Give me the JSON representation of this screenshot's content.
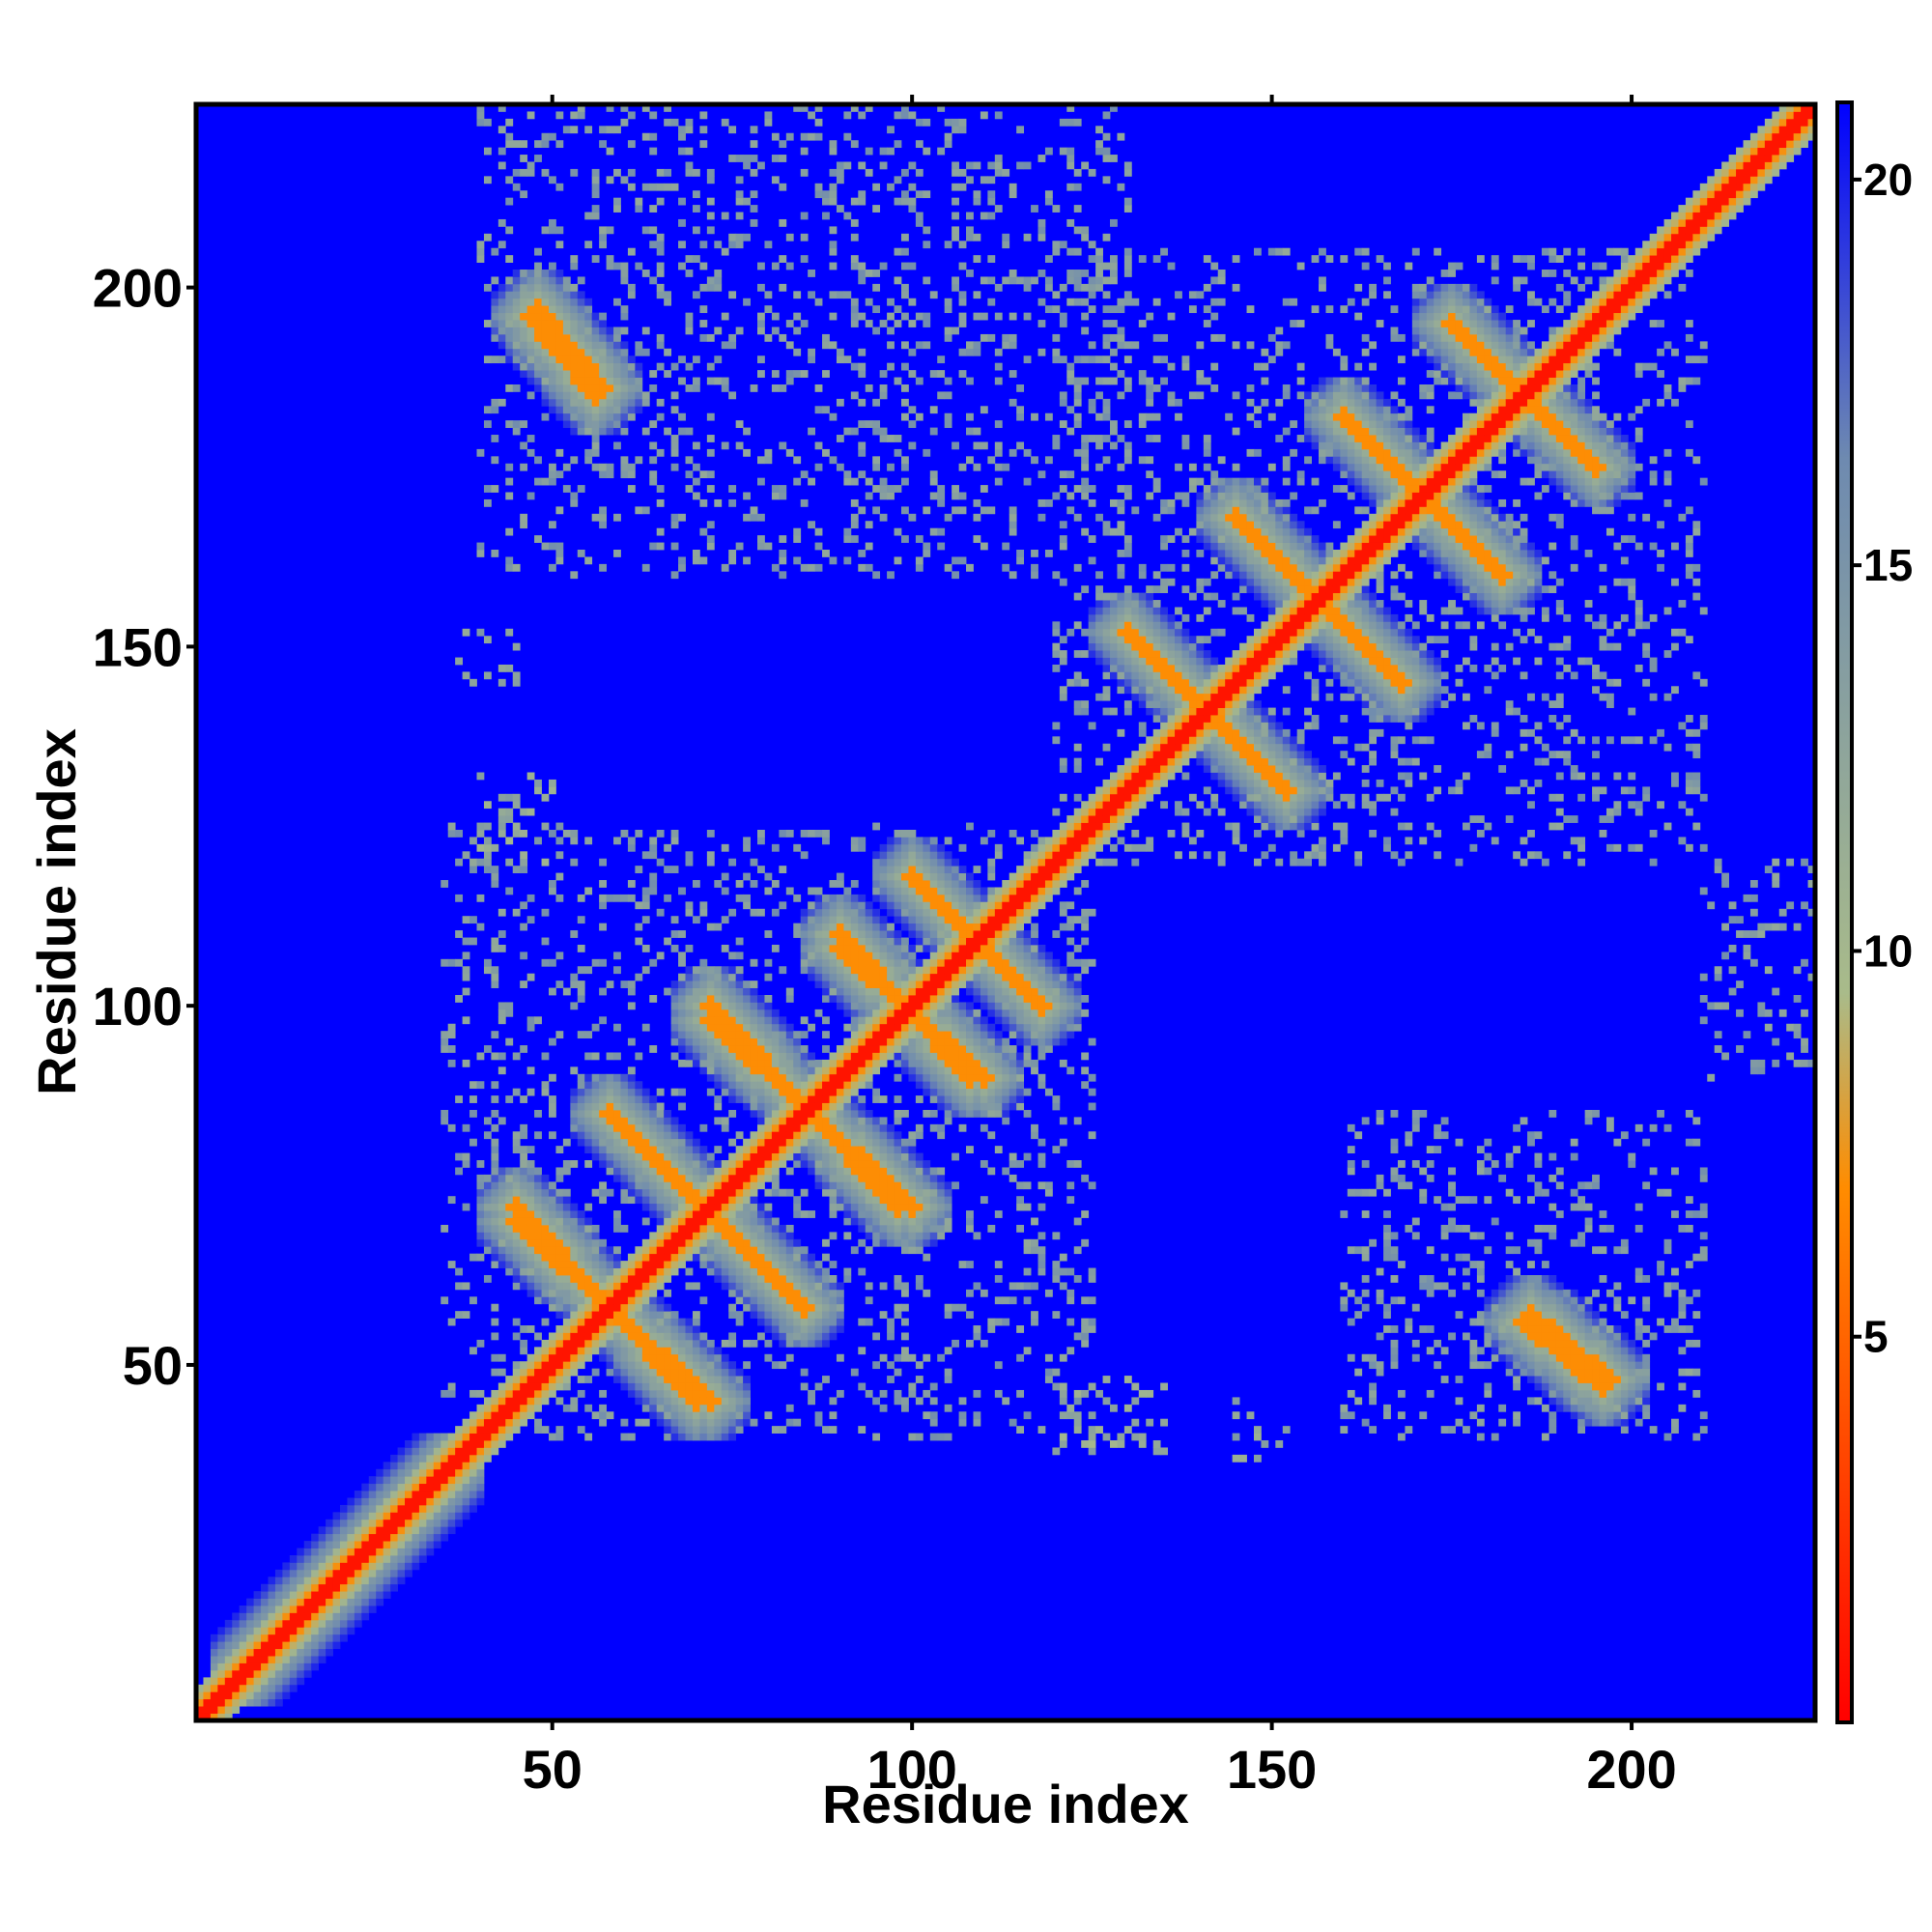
{
  "chart_data": {
    "type": "heatmap",
    "title": "",
    "xlabel": "Residue index",
    "ylabel": "Residue index",
    "xlim": [
      1,
      225
    ],
    "ylim": [
      1,
      225
    ],
    "x_ticks": [
      50,
      100,
      150,
      200
    ],
    "y_ticks": [
      50,
      100,
      150,
      200
    ],
    "colorbar": {
      "ticks": [
        5,
        10,
        15,
        20
      ],
      "range": [
        0,
        21
      ],
      "colors": [
        "#ff0000",
        "#ff8c00",
        "#a9bb8a",
        "#6e8ab0",
        "#0000ff"
      ]
    },
    "background_color": "#0000ff",
    "diagonal_color": "#ff0000",
    "bands": [
      {
        "kind": "parallel",
        "from": [
          8,
          8
        ],
        "to": [
          35,
          35
        ],
        "width": 6,
        "value": 6
      },
      {
        "kind": "antiparallel",
        "from": [
          45,
          70
        ],
        "to": [
          72,
          45
        ],
        "value": 7
      },
      {
        "kind": "antiparallel",
        "from": [
          58,
          85
        ],
        "to": [
          85,
          58
        ],
        "value": 7
      },
      {
        "kind": "antiparallel",
        "from": [
          72,
          98
        ],
        "to": [
          100,
          72
        ],
        "value": 7
      },
      {
        "kind": "antiparallel",
        "from": [
          90,
          108
        ],
        "to": [
          110,
          90
        ],
        "value": 7
      },
      {
        "kind": "antiparallel",
        "from": [
          100,
          118
        ],
        "to": [
          118,
          100
        ],
        "value": 7
      },
      {
        "kind": "antiparallel",
        "from": [
          130,
          152
        ],
        "to": [
          152,
          130
        ],
        "value": 7
      },
      {
        "kind": "antiparallel",
        "from": [
          145,
          168
        ],
        "to": [
          168,
          145
        ],
        "value": 7
      },
      {
        "kind": "antiparallel",
        "from": [
          160,
          182
        ],
        "to": [
          182,
          160
        ],
        "value": 7
      },
      {
        "kind": "antiparallel",
        "from": [
          175,
          195
        ],
        "to": [
          195,
          175
        ],
        "value": 7
      },
      {
        "kind": "antiparallel",
        "from": [
          186,
          57
        ],
        "to": [
          197,
          48
        ],
        "value": 7
      },
      {
        "kind": "antiparallel",
        "from": [
          47,
          196
        ],
        "to": [
          56,
          185
        ],
        "value": 7
      }
    ],
    "contact_regions": [
      {
        "x_range": [
          35,
          125
        ],
        "y_range": [
          40,
          125
        ],
        "value": 12
      },
      {
        "x_range": [
          120,
          210
        ],
        "y_range": [
          120,
          205
        ],
        "value": 12
      },
      {
        "x_range": [
          160,
          210
        ],
        "y_range": [
          40,
          85
        ],
        "value": 12
      },
      {
        "x_range": [
          210,
          225
        ],
        "y_range": [
          90,
          120
        ],
        "value": 12
      },
      {
        "x_range": [
          120,
          135
        ],
        "y_range": [
          38,
          48
        ],
        "value": 10
      },
      {
        "x_range": [
          145,
          152
        ],
        "y_range": [
          35,
          45
        ],
        "value": 11
      },
      {
        "x_range": [
          40,
          130
        ],
        "y_range": [
          160,
          225
        ],
        "value": 12
      },
      {
        "x_range": [
          40,
          50
        ],
        "y_range": [
          120,
          132
        ],
        "value": 10
      },
      {
        "x_range": [
          36,
          45
        ],
        "y_range": [
          145,
          152
        ],
        "value": 11
      }
    ]
  }
}
